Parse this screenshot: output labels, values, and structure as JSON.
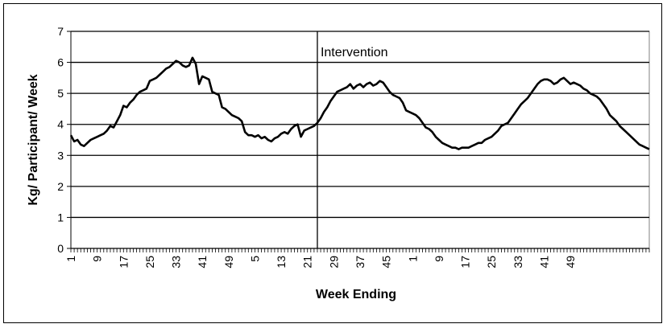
{
  "chart_data": {
    "type": "line",
    "title": "",
    "xlabel": "Week Ending",
    "ylabel": "Kg/ Participant/ Week",
    "ylim": [
      0,
      7
    ],
    "yticks": [
      "0",
      "1",
      "2",
      "3",
      "4",
      "5",
      "6",
      "7"
    ],
    "grid": true,
    "legend": "none",
    "x_tick_labels": [
      "1",
      "9",
      "17",
      "25",
      "33",
      "41",
      "49",
      "5",
      "13",
      "21",
      "29",
      "37",
      "45",
      "1",
      "9",
      "17",
      "25",
      "33",
      "41",
      "49"
    ],
    "annotation": {
      "text": "Intervention",
      "at_point_index": 75
    },
    "series": [
      {
        "color": "#000000",
        "values": [
          3.65,
          3.45,
          3.5,
          3.35,
          3.3,
          3.4,
          3.5,
          3.55,
          3.6,
          3.65,
          3.7,
          3.8,
          3.95,
          3.9,
          4.1,
          4.3,
          4.6,
          4.55,
          4.7,
          4.8,
          4.95,
          5.05,
          5.1,
          5.15,
          5.4,
          5.45,
          5.5,
          5.6,
          5.7,
          5.8,
          5.85,
          5.95,
          6.05,
          6.0,
          5.9,
          5.85,
          5.9,
          6.15,
          5.95,
          5.3,
          5.55,
          5.5,
          5.45,
          5.05,
          5.0,
          4.95,
          4.55,
          4.5,
          4.4,
          4.3,
          4.25,
          4.2,
          4.1,
          3.75,
          3.65,
          3.65,
          3.6,
          3.65,
          3.55,
          3.6,
          3.5,
          3.45,
          3.55,
          3.6,
          3.7,
          3.75,
          3.7,
          3.85,
          3.95,
          4.0,
          3.6,
          3.8,
          3.85,
          3.9,
          3.95,
          4.05,
          4.2,
          4.4,
          4.55,
          4.75,
          4.9,
          5.05,
          5.1,
          5.15,
          5.2,
          5.3,
          5.15,
          5.25,
          5.3,
          5.2,
          5.3,
          5.35,
          5.25,
          5.3,
          5.4,
          5.35,
          5.2,
          5.05,
          4.95,
          4.9,
          4.85,
          4.7,
          4.45,
          4.4,
          4.35,
          4.3,
          4.2,
          4.05,
          3.9,
          3.85,
          3.75,
          3.6,
          3.5,
          3.4,
          3.35,
          3.3,
          3.25,
          3.25,
          3.2,
          3.25,
          3.25,
          3.25,
          3.3,
          3.35,
          3.4,
          3.4,
          3.5,
          3.55,
          3.6,
          3.7,
          3.8,
          3.95,
          4.0,
          4.05,
          4.2,
          4.35,
          4.5,
          4.65,
          4.75,
          4.85,
          5.0,
          5.15,
          5.3,
          5.4,
          5.45,
          5.45,
          5.4,
          5.3,
          5.35,
          5.45,
          5.5,
          5.4,
          5.3,
          5.35,
          5.3,
          5.25,
          5.15,
          5.1,
          5.0,
          4.95,
          4.9,
          4.8,
          4.65,
          4.5,
          4.3,
          4.2,
          4.1,
          3.95,
          3.85,
          3.75,
          3.65,
          3.55,
          3.45,
          3.35,
          3.3,
          3.25,
          3.2
        ]
      }
    ]
  }
}
